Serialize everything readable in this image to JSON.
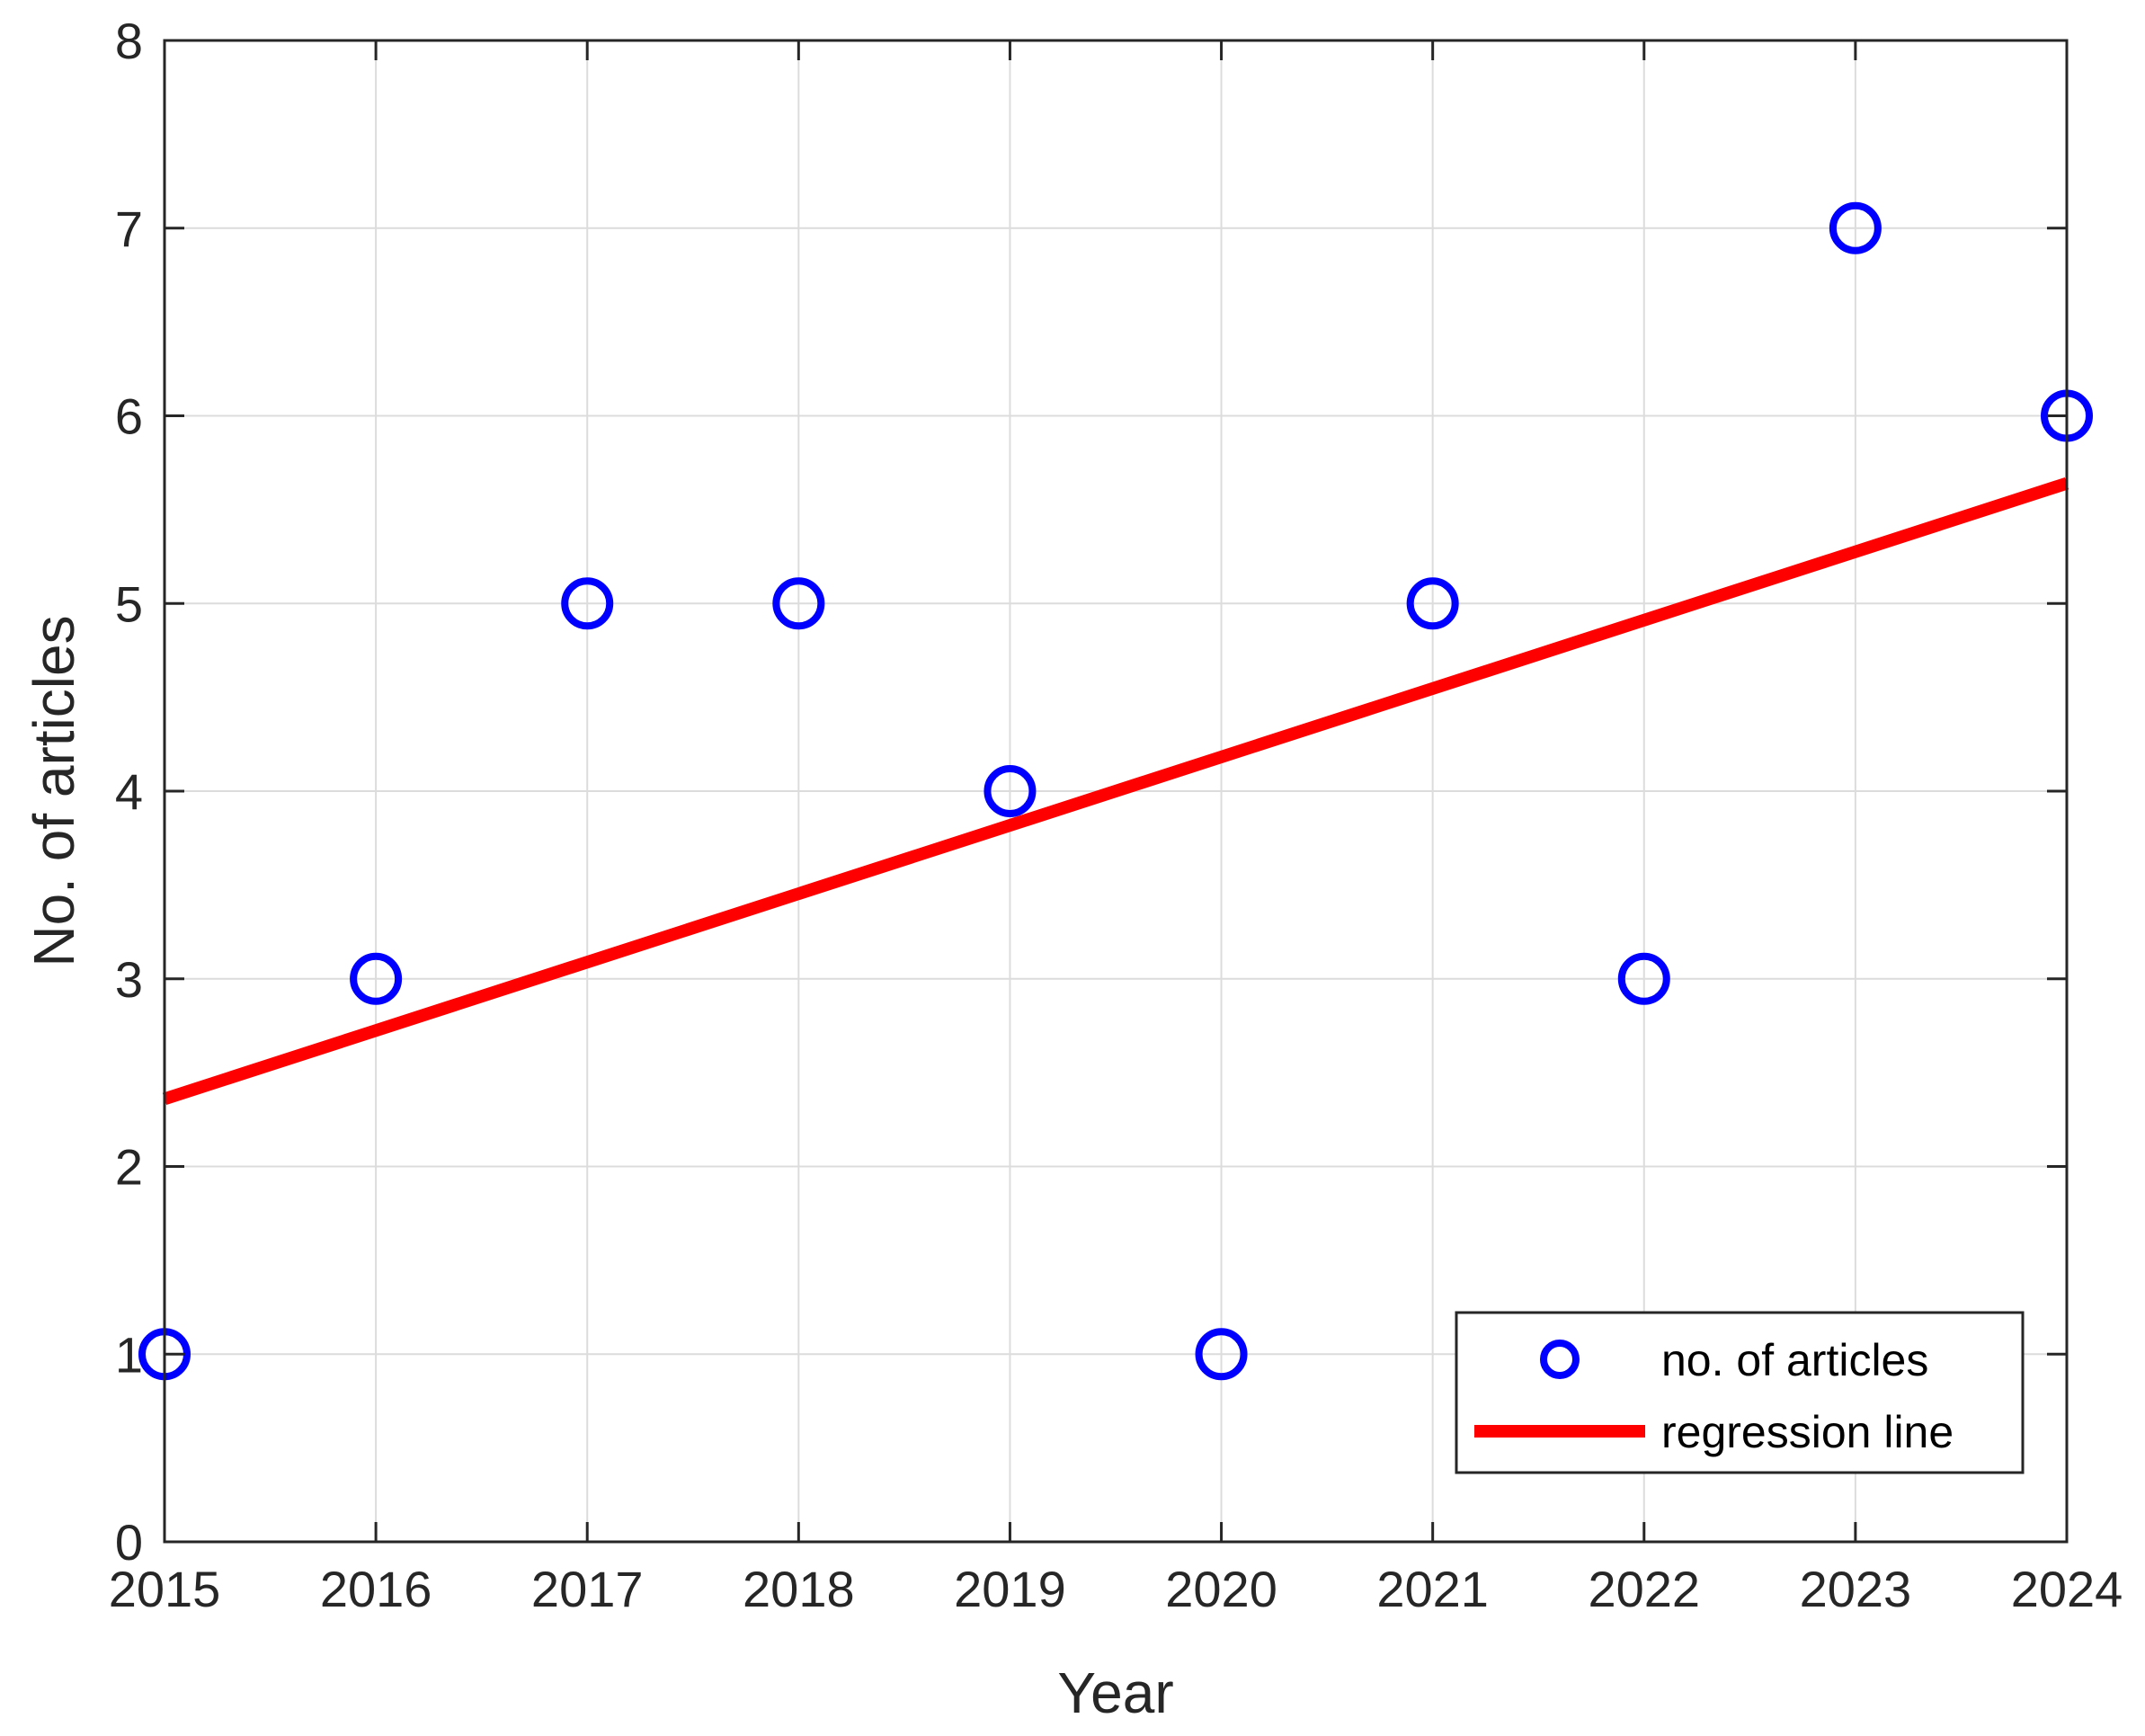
{
  "chart_data": {
    "type": "scatter",
    "xlabel": "Year",
    "ylabel": "No. of articles",
    "xlim": [
      2015,
      2024
    ],
    "ylim": [
      0,
      8
    ],
    "x_ticks": [
      2015,
      2016,
      2017,
      2018,
      2019,
      2020,
      2021,
      2022,
      2023,
      2024
    ],
    "y_ticks": [
      0,
      1,
      2,
      3,
      4,
      5,
      6,
      7,
      8
    ],
    "grid": true,
    "legend": "bottom-right",
    "series": [
      {
        "name": "no. of articles",
        "kind": "scatter",
        "marker": "circle",
        "color": "#0000ff",
        "x": [
          2015,
          2016,
          2017,
          2018,
          2019,
          2020,
          2021,
          2022,
          2023,
          2024
        ],
        "y": [
          1,
          3,
          5,
          5,
          4,
          1,
          5,
          3,
          7,
          6
        ]
      },
      {
        "name": "regression line",
        "kind": "line",
        "color": "#ff0000",
        "x": [
          2015,
          2024
        ],
        "y": [
          2.36,
          5.64
        ]
      }
    ]
  }
}
